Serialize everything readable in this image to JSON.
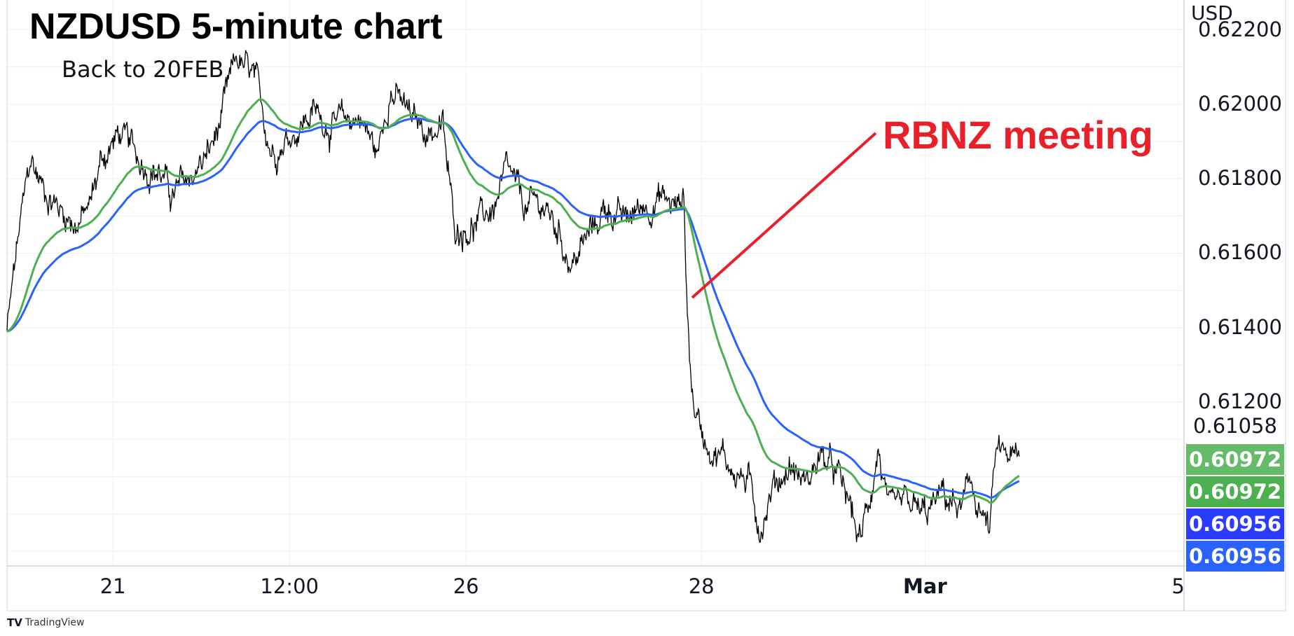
{
  "chart_data": {
    "type": "line",
    "title": "NZDUSD 5-minute chart",
    "subtitle": "Back to 20FEB",
    "annotation": "RBNZ meeting",
    "currency": "USD",
    "ylim": [
      0.6076,
      0.6228
    ],
    "y_ticks": [
      "0.62200",
      "0.62000",
      "0.61800",
      "0.61600",
      "0.61400",
      "0.61200"
    ],
    "y_tick_values": [
      0.622,
      0.62,
      0.618,
      0.616,
      0.614,
      0.612
    ],
    "x_ticks": [
      {
        "label": "21",
        "t": 0.09,
        "bold": false
      },
      {
        "label": "12:00",
        "t": 0.24,
        "bold": false
      },
      {
        "label": "26",
        "t": 0.39,
        "bold": false
      },
      {
        "label": "28",
        "t": 0.59,
        "bold": false
      },
      {
        "label": "Mar",
        "t": 0.78,
        "bold": true
      },
      {
        "label": "5",
        "t": 0.995,
        "bold": false
      }
    ],
    "price_keypoints": [
      [
        0.0,
        0.6139
      ],
      [
        0.01,
        0.6165
      ],
      [
        0.02,
        0.6185
      ],
      [
        0.03,
        0.6178
      ],
      [
        0.045,
        0.6172
      ],
      [
        0.06,
        0.6168
      ],
      [
        0.07,
        0.6172
      ],
      [
        0.08,
        0.6185
      ],
      [
        0.095,
        0.6192
      ],
      [
        0.11,
        0.6186
      ],
      [
        0.13,
        0.6182
      ],
      [
        0.14,
        0.6175
      ],
      [
        0.155,
        0.618
      ],
      [
        0.17,
        0.6186
      ],
      [
        0.18,
        0.6193
      ],
      [
        0.195,
        0.6212
      ],
      [
        0.21,
        0.6206
      ],
      [
        0.225,
        0.6188
      ],
      [
        0.24,
        0.6192
      ],
      [
        0.26,
        0.6198
      ],
      [
        0.28,
        0.6194
      ],
      [
        0.3,
        0.6197
      ],
      [
        0.315,
        0.6186
      ],
      [
        0.325,
        0.6205
      ],
      [
        0.345,
        0.6195
      ],
      [
        0.36,
        0.6193
      ],
      [
        0.37,
        0.6194
      ],
      [
        0.38,
        0.6167
      ],
      [
        0.4,
        0.6168
      ],
      [
        0.415,
        0.6173
      ],
      [
        0.425,
        0.6181
      ],
      [
        0.44,
        0.6172
      ],
      [
        0.455,
        0.6173
      ],
      [
        0.47,
        0.6165
      ],
      [
        0.48,
        0.6157
      ],
      [
        0.495,
        0.6165
      ],
      [
        0.51,
        0.6173
      ],
      [
        0.525,
        0.6168
      ],
      [
        0.54,
        0.6173
      ],
      [
        0.555,
        0.6175
      ],
      [
        0.57,
        0.6172
      ],
      [
        0.575,
        0.6176
      ],
      [
        0.578,
        0.6145
      ],
      [
        0.582,
        0.6122
      ],
      [
        0.59,
        0.6112
      ],
      [
        0.6,
        0.6108
      ],
      [
        0.615,
        0.6103
      ],
      [
        0.63,
        0.6098
      ],
      [
        0.64,
        0.6087
      ],
      [
        0.65,
        0.6097
      ],
      [
        0.665,
        0.6103
      ],
      [
        0.68,
        0.6098
      ],
      [
        0.69,
        0.6106
      ],
      [
        0.705,
        0.61
      ],
      [
        0.715,
        0.6093
      ],
      [
        0.725,
        0.6082
      ],
      [
        0.735,
        0.6098
      ],
      [
        0.74,
        0.6108
      ],
      [
        0.75,
        0.6088
      ],
      [
        0.765,
        0.6092
      ],
      [
        0.78,
        0.6089
      ],
      [
        0.795,
        0.6095
      ],
      [
        0.81,
        0.6091
      ],
      [
        0.82,
        0.6097
      ],
      [
        0.835,
        0.6085
      ],
      [
        0.84,
        0.6105
      ],
      [
        0.85,
        0.6106
      ],
      [
        0.86,
        0.6103
      ]
    ],
    "series": [
      {
        "name": "",
        "color": "#000000",
        "last_value": "0.61058",
        "last_value_num": 0.61058
      },
      {
        "name": "",
        "color": "#4caf50",
        "last_value": "0.60972",
        "last_value_num": 0.60972
      },
      {
        "name": "",
        "color": "#2962ff",
        "last_value": "0.60956",
        "last_value_num": 0.60956
      }
    ],
    "last_value_labels": [
      {
        "text": "0.61058",
        "bg": "#ffffff",
        "fg": "#131722"
      },
      {
        "text": "0.60972",
        "bg": "#66bb6a",
        "fg": "#ffffff"
      },
      {
        "text": "0.60972",
        "bg": "#4caf50",
        "fg": "#ffffff"
      },
      {
        "text": "0.60956",
        "bg": "#2b3bff",
        "fg": "#ffffff"
      },
      {
        "text": "0.60956",
        "bg": "#2962ff",
        "fg": "#ffffff"
      }
    ],
    "grid": true,
    "annotation_color": "#e8202a"
  },
  "branding": {
    "text": "TradingView",
    "logo": "TV"
  }
}
